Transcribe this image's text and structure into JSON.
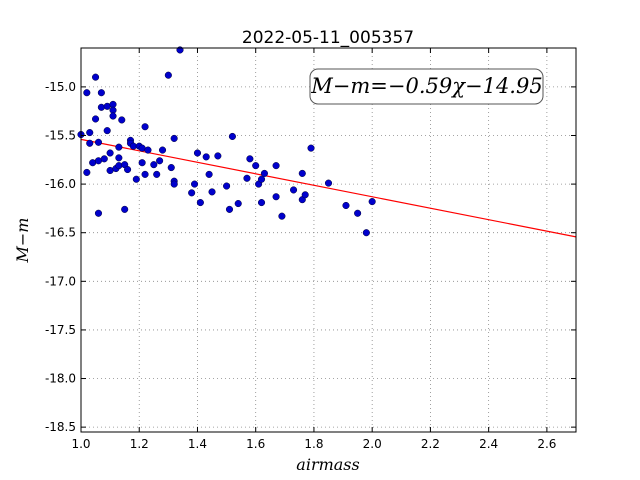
{
  "chart_data": {
    "type": "scatter",
    "title": "2022-05-11_005357",
    "xlabel": "airmass",
    "ylabel": "M−m",
    "xlim": [
      1.0,
      2.7
    ],
    "ylim": [
      -18.55,
      -14.6
    ],
    "x_ticks": [
      "1.0",
      "1.2",
      "1.4",
      "1.6",
      "1.8",
      "2.0",
      "2.2",
      "2.4",
      "2.6"
    ],
    "y_ticks": [
      "-15.0",
      "-15.5",
      "-16.0",
      "-16.5",
      "-17.0",
      "-17.5",
      "-18.0",
      "-18.5"
    ],
    "grid": true,
    "annotation": "M−m=−0.59χ−14.95",
    "fit": {
      "slope": -0.59,
      "intercept": -14.95,
      "color": "#ff0000"
    },
    "point_color": "#0000cc",
    "points": [
      [
        1.0,
        -15.49
      ],
      [
        1.02,
        -15.88
      ],
      [
        1.02,
        -15.06
      ],
      [
        1.03,
        -15.47
      ],
      [
        1.03,
        -15.58
      ],
      [
        1.04,
        -15.78
      ],
      [
        1.05,
        -14.9
      ],
      [
        1.05,
        -15.33
      ],
      [
        1.06,
        -15.76
      ],
      [
        1.06,
        -16.3
      ],
      [
        1.06,
        -15.57
      ],
      [
        1.07,
        -15.21
      ],
      [
        1.07,
        -15.06
      ],
      [
        1.08,
        -15.74
      ],
      [
        1.09,
        -15.2
      ],
      [
        1.09,
        -15.45
      ],
      [
        1.1,
        -15.68
      ],
      [
        1.1,
        -15.86
      ],
      [
        1.11,
        -15.18
      ],
      [
        1.11,
        -15.24
      ],
      [
        1.11,
        -15.3
      ],
      [
        1.12,
        -15.84
      ],
      [
        1.13,
        -15.73
      ],
      [
        1.13,
        -15.62
      ],
      [
        1.13,
        -15.81
      ],
      [
        1.14,
        -15.34
      ],
      [
        1.15,
        -15.8
      ],
      [
        1.15,
        -16.26
      ],
      [
        1.16,
        -15.85
      ],
      [
        1.17,
        -15.55
      ],
      [
        1.17,
        -15.58
      ],
      [
        1.18,
        -15.61
      ],
      [
        1.19,
        -15.95
      ],
      [
        1.2,
        -15.61
      ],
      [
        1.21,
        -15.78
      ],
      [
        1.21,
        -15.63
      ],
      [
        1.22,
        -15.41
      ],
      [
        1.22,
        -15.9
      ],
      [
        1.23,
        -15.65
      ],
      [
        1.25,
        -15.8
      ],
      [
        1.26,
        -15.9
      ],
      [
        1.27,
        -15.76
      ],
      [
        1.28,
        -15.65
      ],
      [
        1.3,
        -14.88
      ],
      [
        1.31,
        -15.83
      ],
      [
        1.32,
        -15.97
      ],
      [
        1.32,
        -16.0
      ],
      [
        1.32,
        -15.53
      ],
      [
        1.34,
        -14.62
      ],
      [
        1.38,
        -16.09
      ],
      [
        1.39,
        -16.0
      ],
      [
        1.4,
        -15.68
      ],
      [
        1.41,
        -16.19
      ],
      [
        1.43,
        -15.72
      ],
      [
        1.44,
        -15.9
      ],
      [
        1.45,
        -16.08
      ],
      [
        1.47,
        -15.71
      ],
      [
        1.5,
        -16.02
      ],
      [
        1.51,
        -16.26
      ],
      [
        1.52,
        -15.51
      ],
      [
        1.54,
        -16.2
      ],
      [
        1.57,
        -15.94
      ],
      [
        1.58,
        -15.74
      ],
      [
        1.6,
        -15.81
      ],
      [
        1.61,
        -16.0
      ],
      [
        1.62,
        -16.19
      ],
      [
        1.62,
        -15.95
      ],
      [
        1.63,
        -15.89
      ],
      [
        1.67,
        -15.81
      ],
      [
        1.67,
        -16.13
      ],
      [
        1.69,
        -16.33
      ],
      [
        1.73,
        -16.06
      ],
      [
        1.76,
        -16.16
      ],
      [
        1.76,
        -15.89
      ],
      [
        1.77,
        -16.11
      ],
      [
        1.79,
        -15.63
      ],
      [
        1.85,
        -15.99
      ],
      [
        1.91,
        -16.22
      ],
      [
        1.95,
        -16.3
      ],
      [
        1.98,
        -16.5
      ],
      [
        2.0,
        -16.18
      ]
    ]
  }
}
